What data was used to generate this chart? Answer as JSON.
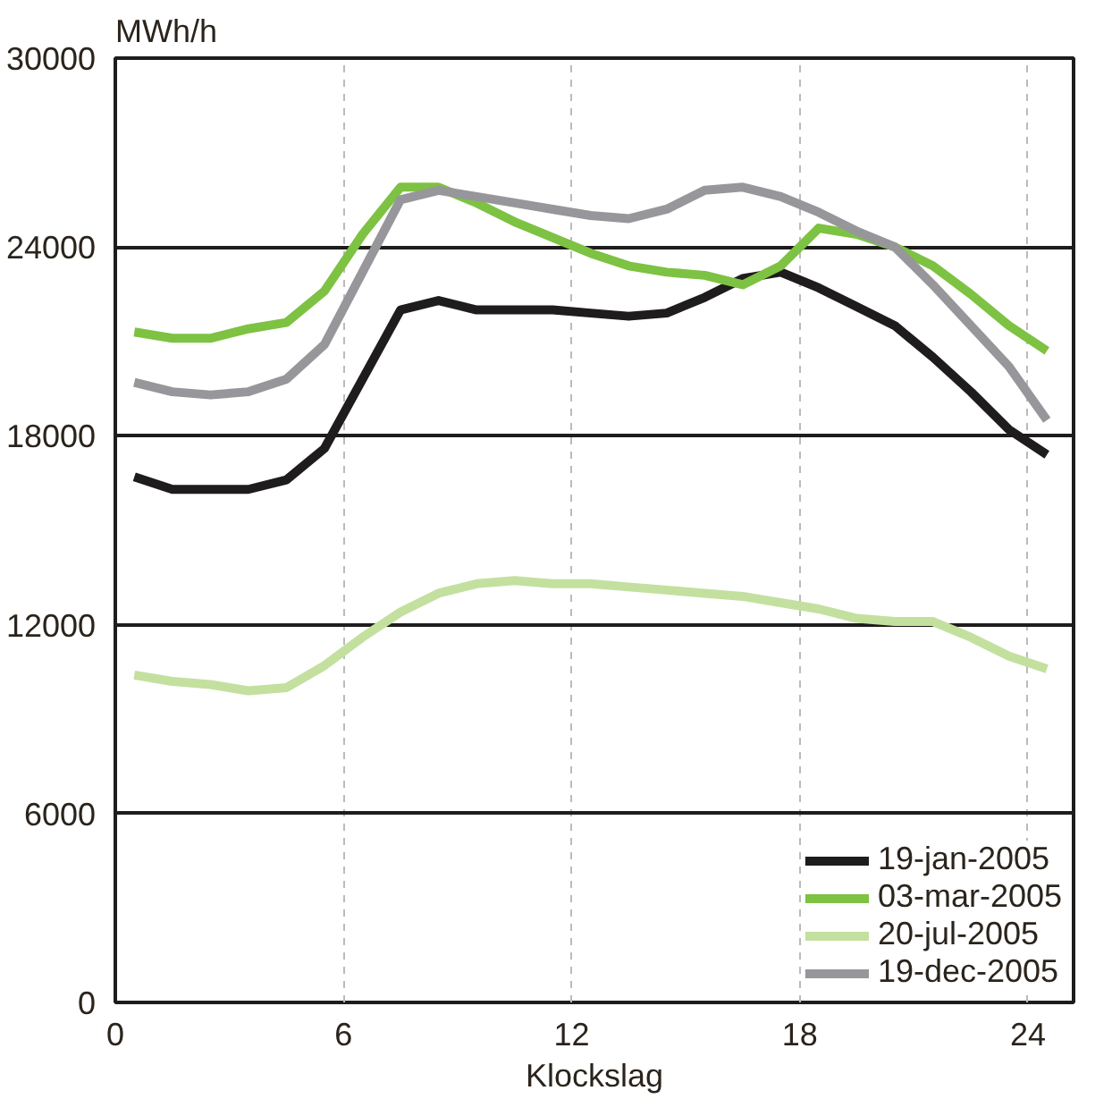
{
  "chart_data": {
    "type": "line",
    "xlabel": "Klockslag",
    "ylabel": "MWh/h",
    "x": [
      0.5,
      1.5,
      2.5,
      3.5,
      4.5,
      5.5,
      6.5,
      7.5,
      8.5,
      9.5,
      10.5,
      11.5,
      12.5,
      13.5,
      14.5,
      15.5,
      16.5,
      17.5,
      18.5,
      19.5,
      20.5,
      21.5,
      22.5,
      23.5,
      24.5
    ],
    "xlim": [
      0,
      25.2
    ],
    "xticks": [
      0,
      6,
      12,
      18,
      24
    ],
    "ylim": [
      0,
      30000
    ],
    "yticks": [
      0,
      6000,
      12000,
      18000,
      24000,
      30000
    ],
    "grid": true,
    "legend": "bottom right",
    "line_style": "solid",
    "marker": "none",
    "series": [
      {
        "name": "19-jan-2005",
        "color": "#1e1c1c",
        "values": [
          16700,
          16300,
          16300,
          16300,
          16600,
          17600,
          19800,
          22000,
          22300,
          22000,
          22000,
          22000,
          21900,
          21800,
          21900,
          22400,
          23000,
          23200,
          22700,
          22100,
          21500,
          20500,
          19400,
          18200,
          17400
        ]
      },
      {
        "name": "03-mar-2005",
        "color": "#7dc242",
        "values": [
          21300,
          21100,
          21100,
          21400,
          21600,
          22600,
          24400,
          25900,
          25900,
          25400,
          24800,
          24300,
          23800,
          23400,
          23200,
          23100,
          22800,
          23400,
          24600,
          24400,
          24000,
          23400,
          22500,
          21500,
          20700
        ]
      },
      {
        "name": "20-jul-2005",
        "color": "#c3e09f",
        "values": [
          10400,
          10200,
          10100,
          9900,
          10000,
          10700,
          11600,
          12400,
          13000,
          13300,
          13400,
          13300,
          13300,
          13200,
          13100,
          13000,
          12900,
          12700,
          12500,
          12200,
          12100,
          12100,
          11600,
          11000,
          10600
        ]
      },
      {
        "name": "19-dec-2005",
        "color": "#97969b",
        "values": [
          19700,
          19400,
          19300,
          19400,
          19800,
          20900,
          23200,
          25500,
          25800,
          25600,
          25400,
          25200,
          25000,
          24900,
          25200,
          25800,
          25900,
          25600,
          25100,
          24500,
          24000,
          22800,
          21500,
          20200,
          18500
        ]
      }
    ]
  }
}
